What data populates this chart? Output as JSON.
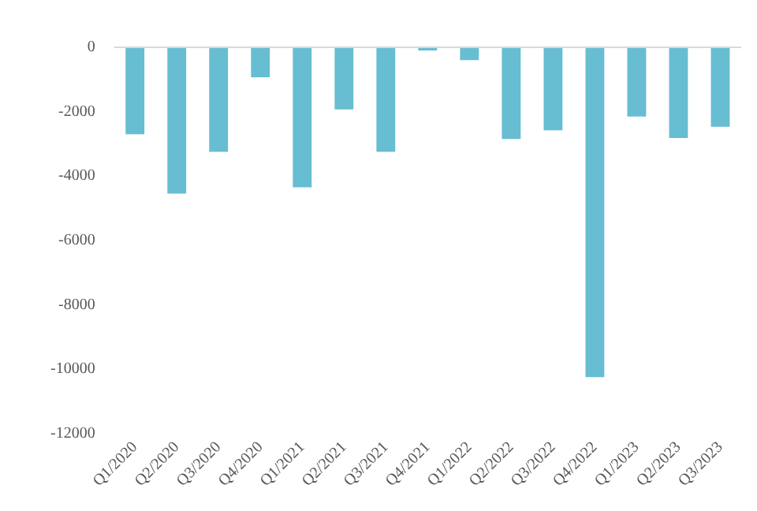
{
  "chart_data": {
    "type": "bar",
    "categories": [
      "Q1/2020",
      "Q2/2020",
      "Q3/2020",
      "Q4/2020",
      "Q1/2021",
      "Q2/2021",
      "Q3/2021",
      "Q4/2021",
      "Q1/2022",
      "Q2/2022",
      "Q3/2022",
      "Q4/2022",
      "Q1/2023",
      "Q2/2023",
      "Q3/2023"
    ],
    "values": [
      -2700,
      -4550,
      -3250,
      -930,
      -4350,
      -1930,
      -3250,
      -100,
      -400,
      -2850,
      -2580,
      -10250,
      -2150,
      -2820,
      -2470
    ],
    "color": "#67bdd1",
    "ylim": [
      -12000,
      0
    ],
    "yticks": [
      -12000,
      -10000,
      -8000,
      -6000,
      -4000,
      -2000,
      0
    ],
    "grid": false,
    "legend": false
  }
}
